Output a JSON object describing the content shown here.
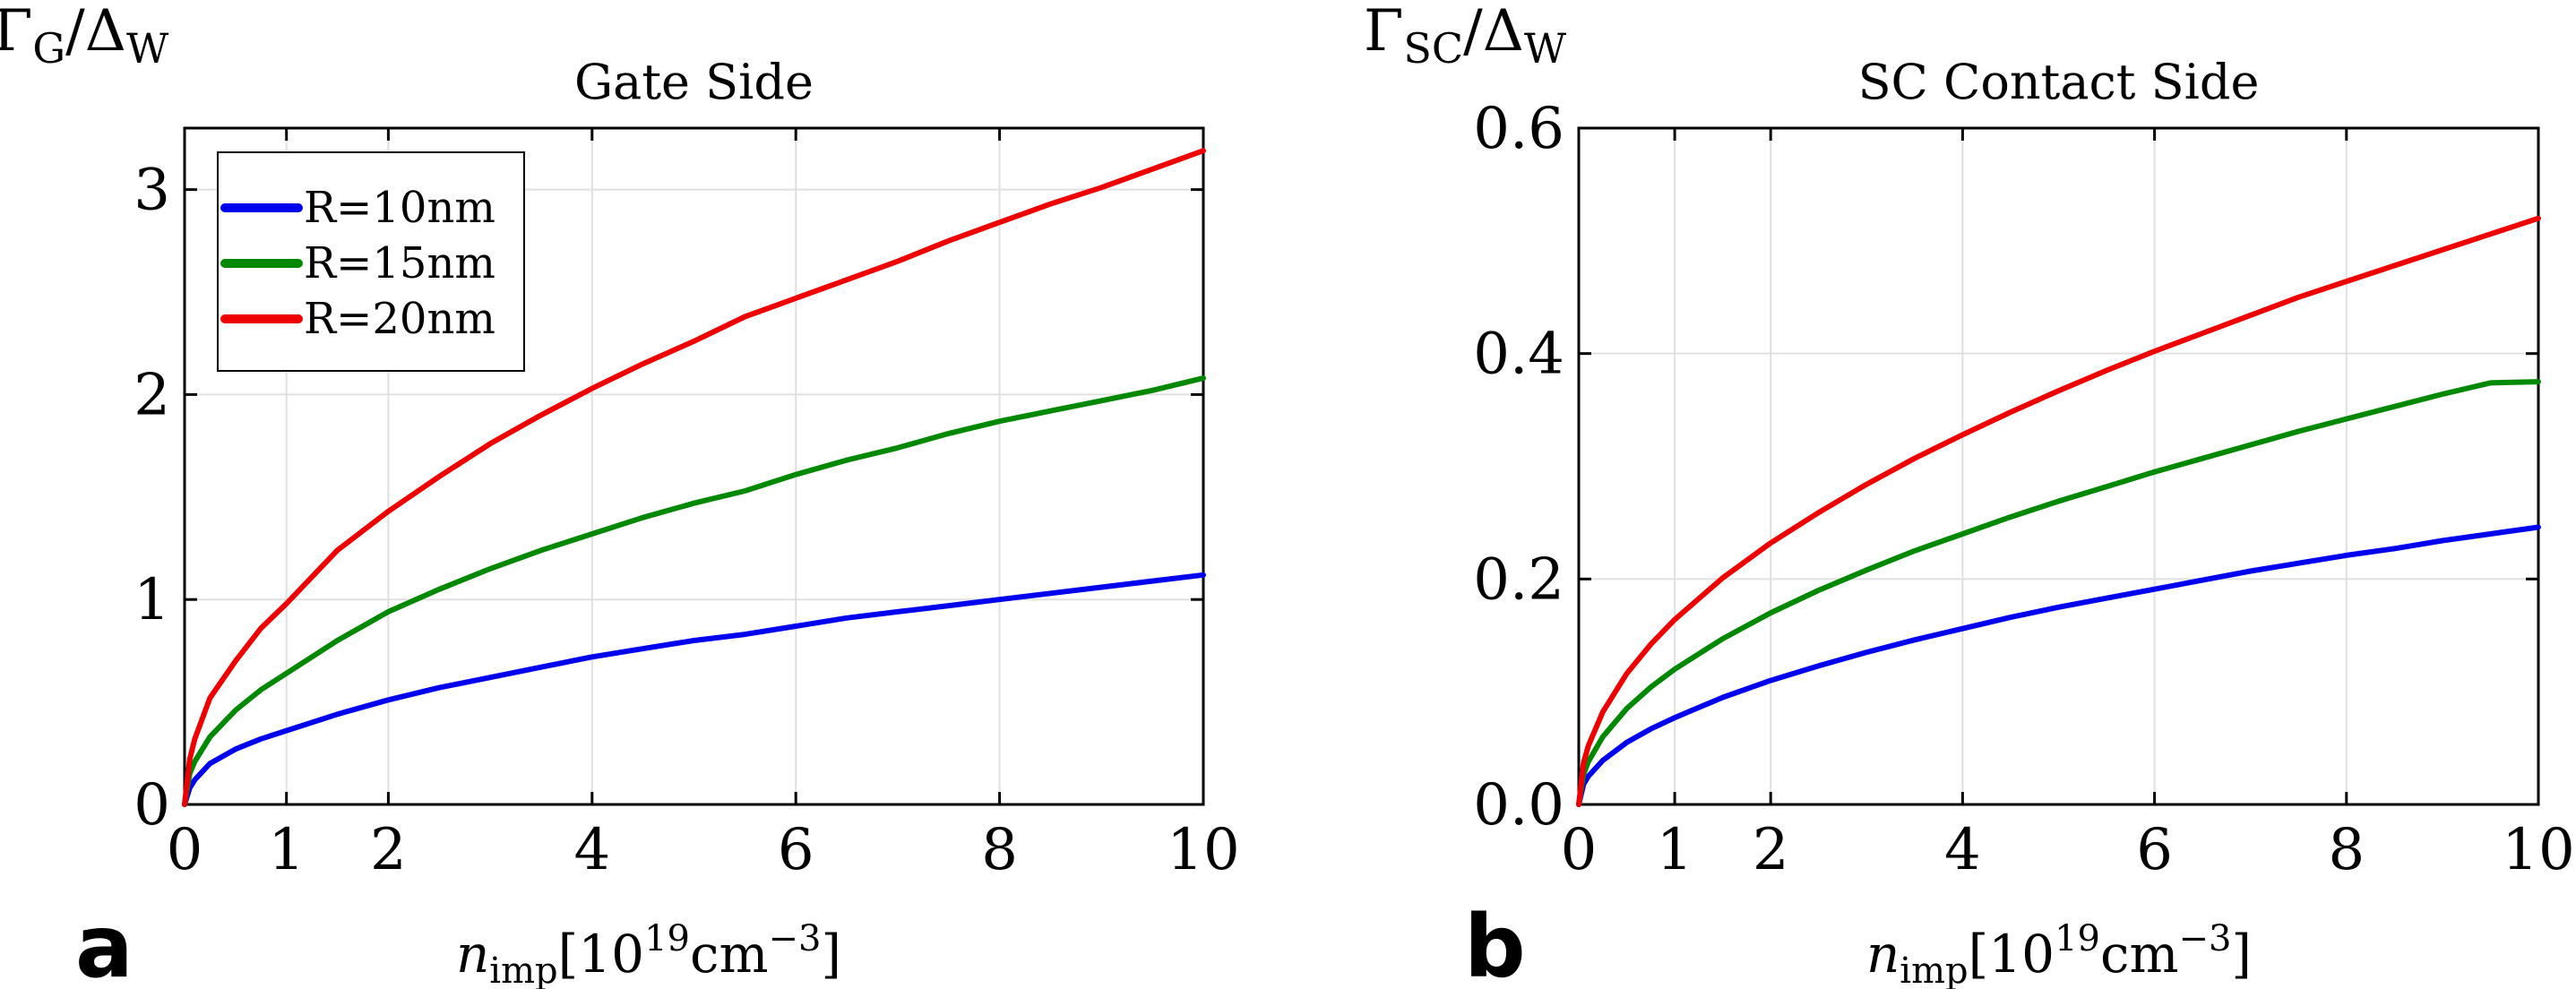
{
  "chart_data": [
    {
      "type": "line",
      "panel_label": "a",
      "title": "Gate Side",
      "ylabel": {
        "base": "Γ",
        "sub": "G",
        "mid": "/Δ",
        "sub2": "W"
      },
      "xlabel": {
        "var": "n",
        "sub": "imp",
        "pre": "[10",
        "sup": "19",
        "unit": "cm",
        "sup2": "−3",
        "post": "]"
      },
      "xlim": [
        0,
        10
      ],
      "ylim": [
        0,
        3.3
      ],
      "xticks": [
        0,
        1,
        2,
        4,
        6,
        8,
        10
      ],
      "xtick_labels": [
        "0",
        "1",
        "2",
        "4",
        "6",
        "8",
        "10"
      ],
      "yticks": [
        0,
        1,
        2,
        3
      ],
      "ytick_labels": [
        "0",
        "1",
        "2",
        "3"
      ],
      "grid": true,
      "legend_position": "top-left",
      "x": [
        0,
        0.05,
        0.1,
        0.25,
        0.5,
        0.75,
        1,
        1.5,
        2,
        2.5,
        3,
        3.5,
        4,
        4.5,
        5,
        5.5,
        6,
        6.5,
        7,
        7.5,
        8,
        8.5,
        9,
        9.5,
        10
      ],
      "series": [
        {
          "name": "R=10nm",
          "color": "#0000ee",
          "values": [
            0,
            0.08,
            0.12,
            0.2,
            0.27,
            0.32,
            0.36,
            0.44,
            0.51,
            0.57,
            0.62,
            0.67,
            0.72,
            0.76,
            0.8,
            0.83,
            0.87,
            0.91,
            0.94,
            0.97,
            1.0,
            1.03,
            1.06,
            1.09,
            1.12
          ]
        },
        {
          "name": "R=15nm",
          "color": "#008800",
          "values": [
            0,
            0.15,
            0.21,
            0.33,
            0.46,
            0.56,
            0.64,
            0.8,
            0.94,
            1.05,
            1.15,
            1.24,
            1.32,
            1.4,
            1.47,
            1.53,
            1.61,
            1.68,
            1.74,
            1.81,
            1.87,
            1.92,
            1.97,
            2.02,
            2.08
          ]
        },
        {
          "name": "R=20nm",
          "color": "#ee0000",
          "values": [
            0,
            0.22,
            0.32,
            0.52,
            0.7,
            0.86,
            0.98,
            1.24,
            1.43,
            1.6,
            1.76,
            1.9,
            2.03,
            2.15,
            2.26,
            2.38,
            2.47,
            2.56,
            2.65,
            2.75,
            2.84,
            2.93,
            3.01,
            3.1,
            3.19
          ]
        }
      ]
    },
    {
      "type": "line",
      "panel_label": "b",
      "title": "SC Contact Side",
      "ylabel": {
        "base": "Γ",
        "sub": "SC",
        "mid": "/Δ",
        "sub2": "W"
      },
      "xlabel": {
        "var": "n",
        "sub": "imp",
        "pre": "[10",
        "sup": "19",
        "unit": "cm",
        "sup2": "−3",
        "post": "]"
      },
      "xlim": [
        0,
        10
      ],
      "ylim": [
        0,
        0.6
      ],
      "xticks": [
        0,
        1,
        2,
        4,
        6,
        8,
        10
      ],
      "xtick_labels": [
        "0",
        "1",
        "2",
        "4",
        "6",
        "8",
        "10"
      ],
      "yticks": [
        0,
        0.2,
        0.4,
        0.6
      ],
      "ytick_labels": [
        "0.0",
        "0.2",
        "0.4",
        "0.6"
      ],
      "grid": true,
      "x": [
        0,
        0.05,
        0.1,
        0.25,
        0.5,
        0.75,
        1,
        1.5,
        2,
        2.5,
        3,
        3.5,
        4,
        4.5,
        5,
        5.5,
        6,
        6.5,
        7,
        7.5,
        8,
        8.5,
        9,
        9.5,
        10
      ],
      "series": [
        {
          "name": "R=10nm",
          "color": "#0000ee",
          "values": [
            0,
            0.018,
            0.025,
            0.039,
            0.055,
            0.067,
            0.077,
            0.095,
            0.11,
            0.123,
            0.135,
            0.146,
            0.156,
            0.166,
            0.175,
            0.183,
            0.191,
            0.199,
            0.207,
            0.214,
            0.221,
            0.227,
            0.234,
            0.24,
            0.246
          ]
        },
        {
          "name": "R=15nm",
          "color": "#008800",
          "values": [
            0,
            0.027,
            0.038,
            0.06,
            0.085,
            0.104,
            0.12,
            0.147,
            0.17,
            0.19,
            0.208,
            0.225,
            0.24,
            0.255,
            0.269,
            0.282,
            0.295,
            0.307,
            0.319,
            0.331,
            0.342,
            0.353,
            0.364,
            0.374,
            0.375
          ]
        },
        {
          "name": "R=20nm",
          "color": "#ee0000",
          "values": [
            0,
            0.037,
            0.052,
            0.082,
            0.116,
            0.142,
            0.164,
            0.201,
            0.232,
            0.259,
            0.284,
            0.307,
            0.328,
            0.348,
            0.367,
            0.385,
            0.402,
            0.418,
            0.434,
            0.45,
            0.464,
            0.478,
            0.492,
            0.506,
            0.52
          ]
        }
      ]
    }
  ]
}
